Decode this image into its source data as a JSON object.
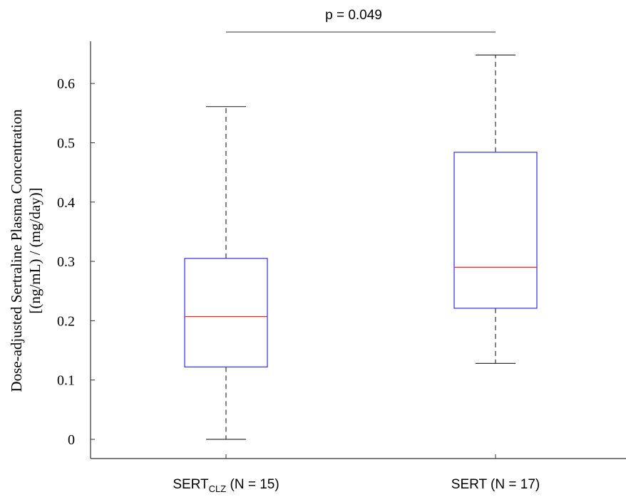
{
  "chart_data": {
    "type": "box",
    "ylabel_lines": [
      "Dose-adjusted Sertraline Plasma Concentration",
      "[(ng/mL) / (mg/day)]"
    ],
    "ylim": [
      -0.03,
      0.66
    ],
    "yticks": [
      "0",
      "0.1",
      "0.2",
      "0.3",
      "0.4",
      "0.5",
      "0.6"
    ],
    "grid": false,
    "groups": [
      {
        "label_main": "SERT",
        "label_sub": "CLZ",
        "label_suffix": " (N = 15)",
        "min": 0.0,
        "q1": 0.122,
        "median": 0.207,
        "q3": 0.305,
        "max": 0.561
      },
      {
        "label_main": "SERT",
        "label_sub": "",
        "label_suffix": " (N = 17)",
        "min": 0.128,
        "q1": 0.221,
        "median": 0.29,
        "q3": 0.484,
        "max": 0.648
      }
    ],
    "annotation": {
      "text": "p = 0.049"
    },
    "colors": {
      "box": "#3d3df0",
      "median": "#e8332b",
      "whisker": "#333333",
      "axis": "#333333"
    }
  }
}
